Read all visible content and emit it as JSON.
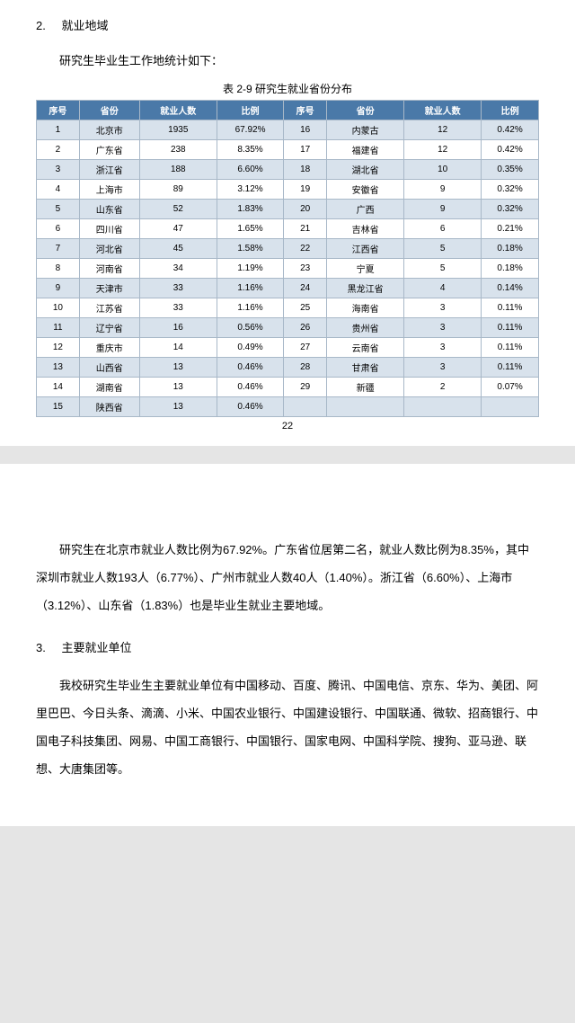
{
  "section2": {
    "num": "2.",
    "title": "就业地域",
    "intro": "研究生毕业生工作地统计如下：",
    "table_caption": "表 2-9  研究生就业省份分布",
    "headers": [
      "序号",
      "省份",
      "就业人数",
      "比例",
      "序号",
      "省份",
      "就业人数",
      "比例"
    ],
    "rows": [
      [
        "1",
        "北京市",
        "1935",
        "67.92%",
        "16",
        "内蒙古",
        "12",
        "0.42%"
      ],
      [
        "2",
        "广东省",
        "238",
        "8.35%",
        "17",
        "福建省",
        "12",
        "0.42%"
      ],
      [
        "3",
        "浙江省",
        "188",
        "6.60%",
        "18",
        "湖北省",
        "10",
        "0.35%"
      ],
      [
        "4",
        "上海市",
        "89",
        "3.12%",
        "19",
        "安徽省",
        "9",
        "0.32%"
      ],
      [
        "5",
        "山东省",
        "52",
        "1.83%",
        "20",
        "广西",
        "9",
        "0.32%"
      ],
      [
        "6",
        "四川省",
        "47",
        "1.65%",
        "21",
        "吉林省",
        "6",
        "0.21%"
      ],
      [
        "7",
        "河北省",
        "45",
        "1.58%",
        "22",
        "江西省",
        "5",
        "0.18%"
      ],
      [
        "8",
        "河南省",
        "34",
        "1.19%",
        "23",
        "宁夏",
        "5",
        "0.18%"
      ],
      [
        "9",
        "天津市",
        "33",
        "1.16%",
        "24",
        "黑龙江省",
        "4",
        "0.14%"
      ],
      [
        "10",
        "江苏省",
        "33",
        "1.16%",
        "25",
        "海南省",
        "3",
        "0.11%"
      ],
      [
        "11",
        "辽宁省",
        "16",
        "0.56%",
        "26",
        "贵州省",
        "3",
        "0.11%"
      ],
      [
        "12",
        "重庆市",
        "14",
        "0.49%",
        "27",
        "云南省",
        "3",
        "0.11%"
      ],
      [
        "13",
        "山西省",
        "13",
        "0.46%",
        "28",
        "甘肃省",
        "3",
        "0.11%"
      ],
      [
        "14",
        "湖南省",
        "13",
        "0.46%",
        "29",
        "新疆",
        "2",
        "0.07%"
      ],
      [
        "15",
        "陕西省",
        "13",
        "0.46%",
        "",
        "",
        "",
        ""
      ]
    ],
    "page_number": "22"
  },
  "page2": {
    "para1": "研究生在北京市就业人数比例为67.92%。广东省位居第二名，就业人数比例为8.35%，其中深圳市就业人数193人（6.77%）、广州市就业人数40人（1.40%）。浙江省（6.60%）、上海市（3.12%）、山东省（1.83%）也是毕业生就业主要地域。",
    "sec3_num": "3.",
    "sec3_title": "主要就业单位",
    "para2": "我校研究生毕业生主要就业单位有中国移动、百度、腾讯、中国电信、京东、华为、美团、阿里巴巴、今日头条、滴滴、小米、中国农业银行、中国建设银行、中国联通、微软、招商银行、中国电子科技集团、网易、中国工商银行、中国银行、国家电网、中国科学院、搜狗、亚马逊、联想、大唐集团等。"
  },
  "style": {
    "header_bg": "#4a79a8",
    "even_row_bg": "#d8e2ec",
    "odd_row_bg": "#ffffff",
    "border_color": "#a8b8c8"
  }
}
